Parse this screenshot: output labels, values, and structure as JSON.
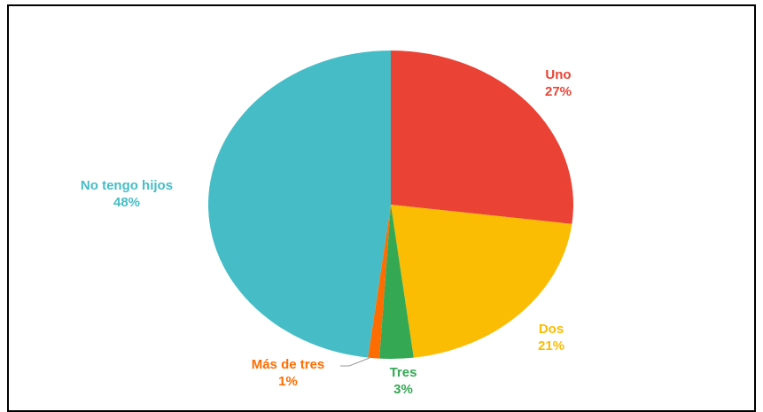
{
  "chart_data": {
    "type": "pie",
    "categories": [
      "Uno",
      "Dos",
      "Tres",
      "Más de tres",
      "No tengo hijos"
    ],
    "values": [
      27,
      21,
      3,
      1,
      48
    ],
    "value_labels": [
      "27%",
      "21%",
      "3%",
      "1%",
      "48%"
    ],
    "colors": [
      "#ea4335",
      "#fbbc04",
      "#34a853",
      "#ff6d01",
      "#46bdc6"
    ]
  }
}
